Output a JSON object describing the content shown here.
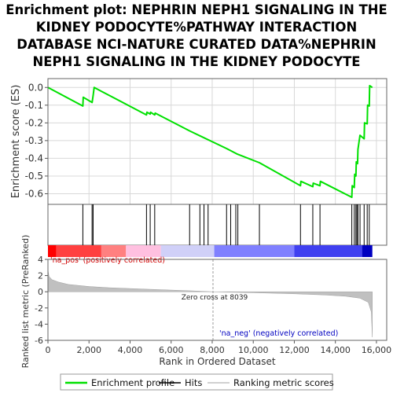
{
  "chart_data": {
    "type": "line",
    "title_lines": [
      "Enrichment plot: NEPHRIN NEPH1 SIGNALING IN THE",
      "KIDNEY PODOCYTE%PATHWAY INTERACTION",
      "DATABASE NCI-NATURE CURATED DATA%NEPHRIN",
      "NEPH1 SIGNALING IN THE KIDNEY PODOCYTE"
    ],
    "top_panel": {
      "ylabel": "Enrichment score (ES)",
      "ylim": [
        -0.66,
        0.05
      ],
      "yticks": [
        0.0,
        -0.1,
        -0.2,
        -0.3,
        -0.4,
        -0.5,
        -0.6
      ],
      "ytick_labels": [
        "0.0",
        "-0.1",
        "-0.2",
        "-0.3",
        "-0.4",
        "-0.5",
        "-0.6"
      ],
      "grid": true,
      "line_color": "#00e000",
      "enrichment_profile": {
        "x": [
          0,
          1700,
          1720,
          2150,
          2200,
          2250,
          4800,
          4820,
          4980,
          5000,
          5200,
          5220,
          6900,
          8700,
          9200,
          10300,
          12300,
          12320,
          12900,
          12920,
          13250,
          13270,
          14800,
          14820,
          14920,
          14940,
          15000,
          15020,
          15080,
          15100,
          15200,
          15400,
          15420,
          15550,
          15570,
          15650,
          15670,
          15800
        ],
        "y": [
          0.0,
          -0.105,
          -0.055,
          -0.085,
          -0.045,
          0.0,
          -0.155,
          -0.14,
          -0.15,
          -0.14,
          -0.155,
          -0.145,
          -0.245,
          -0.345,
          -0.375,
          -0.425,
          -0.555,
          -0.53,
          -0.56,
          -0.54,
          -0.555,
          -0.53,
          -0.62,
          -0.555,
          -0.565,
          -0.49,
          -0.5,
          -0.42,
          -0.43,
          -0.35,
          -0.27,
          -0.29,
          -0.2,
          -0.205,
          -0.1,
          -0.105,
          0.01,
          0.0
        ]
      }
    },
    "hits": [
      1700,
      2150,
      2200,
      4800,
      4980,
      5200,
      6900,
      7400,
      7600,
      7800,
      8700,
      8900,
      9150,
      9250,
      10300,
      12300,
      12900,
      13250,
      14800,
      14920,
      15000,
      15050,
      15100,
      15200,
      15400,
      15550,
      15650
    ],
    "ranking_bar": {
      "colors": [
        "#ff0000",
        "#ff4040",
        "#ff8080",
        "#ffc0e0",
        "#d0d0f8",
        "#8080ff",
        "#4040f0",
        "#0000c0"
      ],
      "segments_end_rank": [
        400,
        2600,
        3800,
        5500,
        8100,
        12000,
        15300,
        15800
      ]
    },
    "bottom_panel": {
      "ylabel": "Ranked list metric (PreRanked)",
      "xlabel": "Rank in Ordered Dataset",
      "xlim": [
        0,
        16500
      ],
      "ylim": [
        -6,
        4
      ],
      "xticks": [
        0,
        2000,
        4000,
        6000,
        8000,
        10000,
        12000,
        14000,
        16000
      ],
      "xtick_labels": [
        "0",
        "2,000",
        "4,000",
        "6,000",
        "8,000",
        "10,000",
        "12,000",
        "14,000",
        "16,000"
      ],
      "yticks": [
        4,
        2,
        0,
        -2,
        -4,
        -6
      ],
      "ytick_labels": [
        "4",
        "2",
        "0",
        "-2",
        "-4",
        "-6"
      ],
      "zero_cross_label": "Zero cross at 8039",
      "zero_cross": 8039,
      "pos_label": "'na_pos' (positively correlated)",
      "neg_label": "'na_neg' (negatively correlated)",
      "metric_profile": {
        "rank": [
          0,
          50,
          200,
          500,
          1000,
          2000,
          3000,
          5000,
          7000,
          8039,
          10000,
          12000,
          13500,
          14500,
          15200,
          15600,
          15750,
          15800
        ],
        "value": [
          2.7,
          1.9,
          1.5,
          1.2,
          0.9,
          0.65,
          0.5,
          0.3,
          0.12,
          0.0,
          -0.12,
          -0.25,
          -0.4,
          -0.55,
          -0.8,
          -1.3,
          -2.5,
          -5.6
        ]
      }
    },
    "legend": {
      "items": [
        {
          "label": "Enrichment profile",
          "color": "#00e000"
        },
        {
          "label": "Hits",
          "color": "#000000"
        },
        {
          "label": "Ranking metric scores",
          "color": "#c0c0c0"
        }
      ]
    }
  }
}
